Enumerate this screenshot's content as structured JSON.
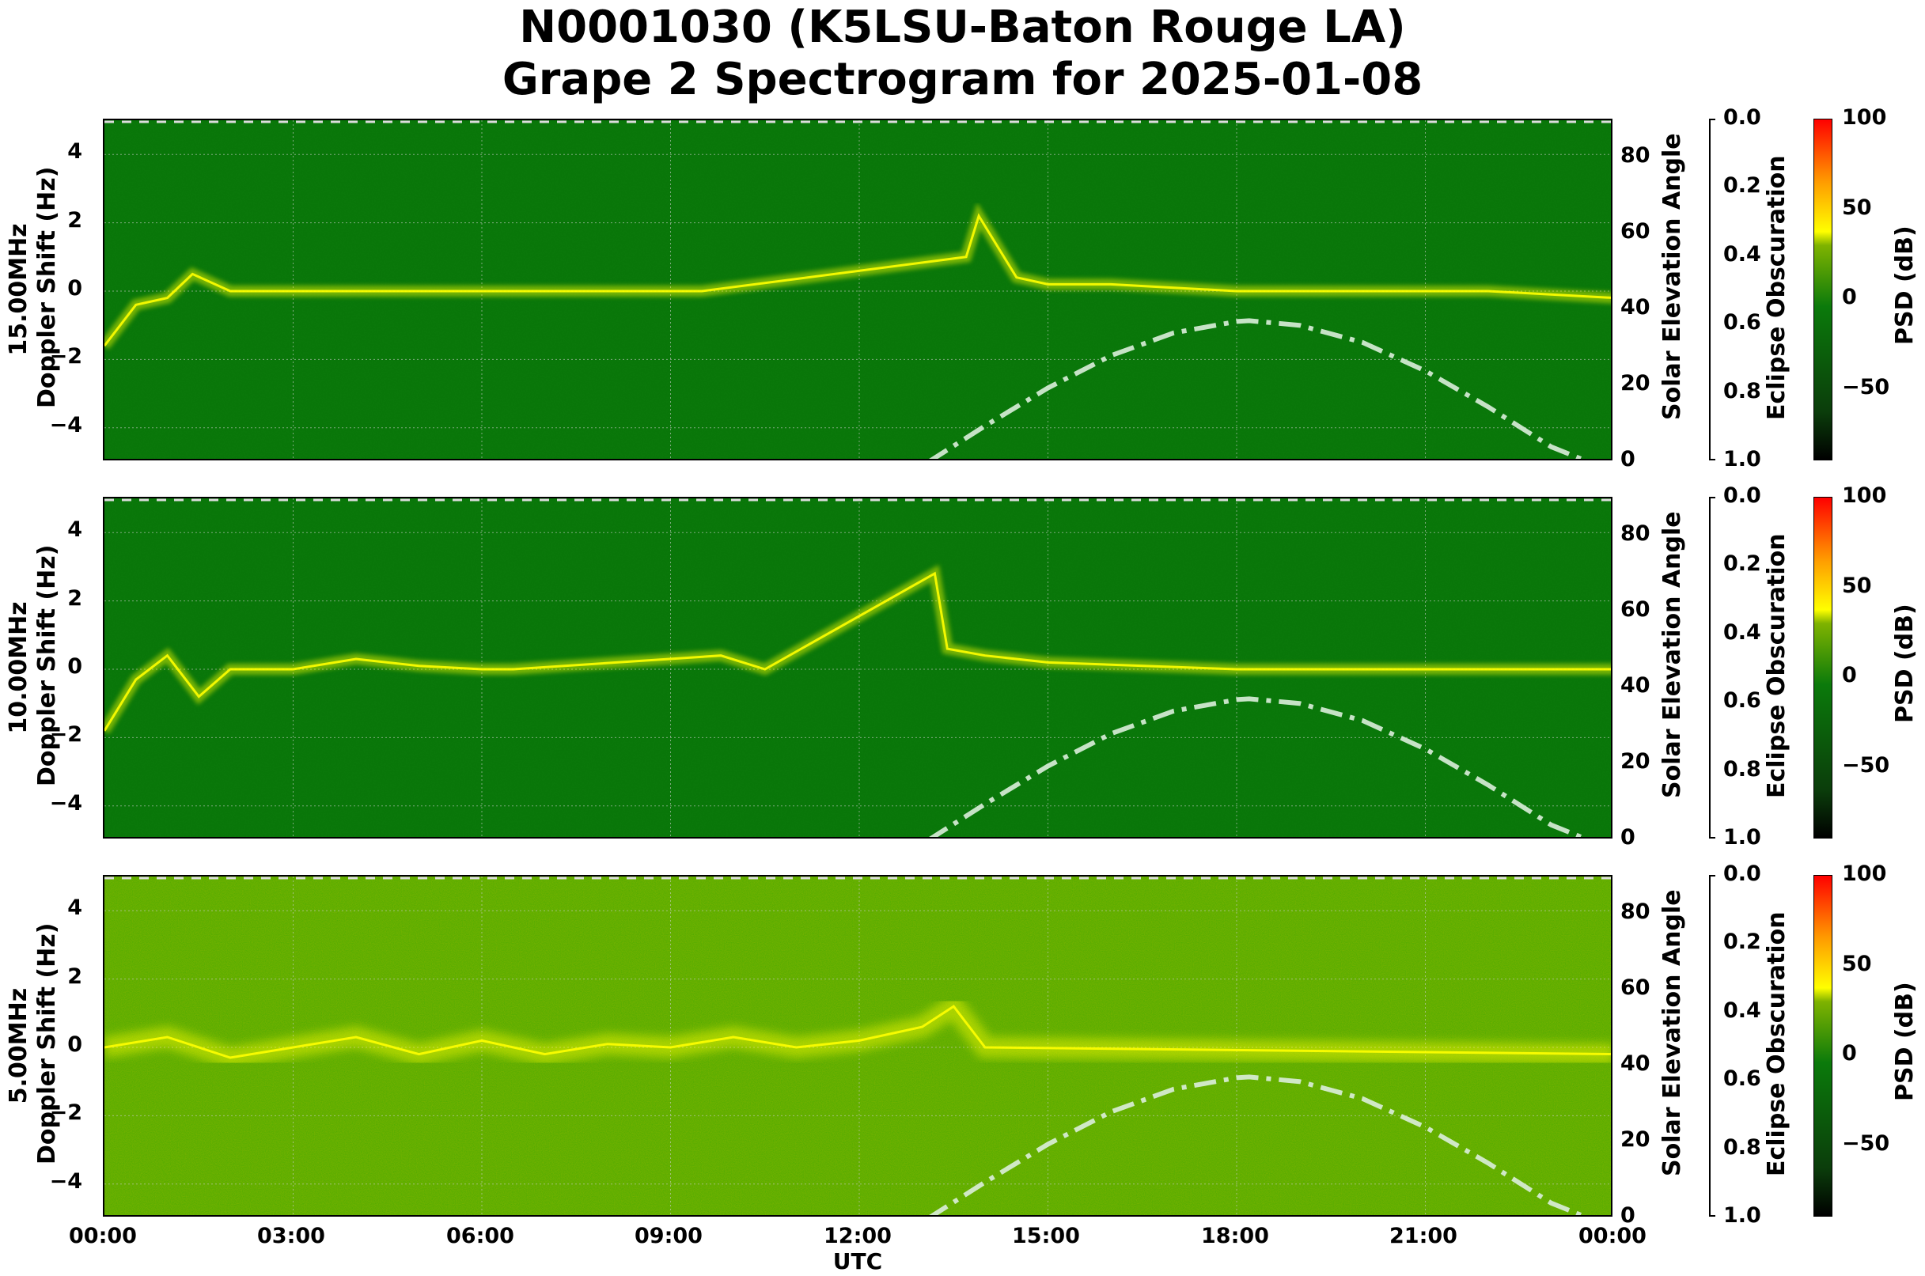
{
  "title": {
    "line1": "N0001030 (K5LSU-Baton Rouge LA)",
    "line2": "Grape 2 Spectrogram for 2025-01-08"
  },
  "colors": {
    "background_low": "#0b7a0b",
    "background_5mhz": "#7fb300",
    "signal": "#ffff00",
    "solar_curve": "#dceedc"
  },
  "x_axis": {
    "label": "UTC",
    "ticks": [
      "00:00",
      "03:00",
      "06:00",
      "09:00",
      "12:00",
      "15:00",
      "18:00",
      "21:00",
      "00:00"
    ]
  },
  "panels": [
    {
      "freq_label": "15.00MHz",
      "ylabel": "Doppler Shift (Hz)",
      "yticks": [
        "4",
        "2",
        "0",
        "−2",
        "−4"
      ],
      "right_label": "Solar Elevation Angle",
      "right_ticks": [
        "80",
        "60",
        "40",
        "20",
        "0"
      ],
      "eclipse_label": "Eclipse Obscuration",
      "eclipse_ticks": [
        "0.0",
        "0.2",
        "0.4",
        "0.6",
        "0.8",
        "1.0"
      ],
      "cbar_label": "PSD (dB)",
      "cbar_ticks": [
        "100",
        "50",
        "0",
        "−50"
      ]
    },
    {
      "freq_label": "10.00MHz",
      "ylabel": "Doppler Shift (Hz)",
      "yticks": [
        "4",
        "2",
        "0",
        "−2",
        "−4"
      ],
      "right_label": "Solar Elevation Angle",
      "right_ticks": [
        "80",
        "60",
        "40",
        "20",
        "0"
      ],
      "eclipse_label": "Eclipse Obscuration",
      "eclipse_ticks": [
        "0.0",
        "0.2",
        "0.4",
        "0.6",
        "0.8",
        "1.0"
      ],
      "cbar_label": "PSD (dB)",
      "cbar_ticks": [
        "100",
        "50",
        "0",
        "−50"
      ]
    },
    {
      "freq_label": "5.00MHz",
      "ylabel": "Doppler Shift (Hz)",
      "yticks": [
        "4",
        "2",
        "0",
        "−2",
        "−4"
      ],
      "right_label": "Solar Elevation Angle",
      "right_ticks": [
        "80",
        "60",
        "40",
        "20",
        "0"
      ],
      "eclipse_label": "Eclipse Obscuration",
      "eclipse_ticks": [
        "0.0",
        "0.2",
        "0.4",
        "0.6",
        "0.8",
        "1.0"
      ],
      "cbar_label": "PSD (dB)",
      "cbar_ticks": [
        "100",
        "50",
        "0",
        "−50"
      ]
    }
  ],
  "chart_data": {
    "type": "heatmap",
    "title": "N0001030 (K5LSU-Baton Rouge LA) Grape 2 Spectrogram for 2025-01-08",
    "xlabel": "UTC",
    "x_ticks": [
      "00:00",
      "03:00",
      "06:00",
      "09:00",
      "12:00",
      "15:00",
      "18:00",
      "21:00",
      "00:00"
    ],
    "xlim_hours": [
      0,
      24
    ],
    "ylabel": "Doppler Shift (Hz)",
    "ylim": [
      -5,
      5
    ],
    "y_ticks": [
      -4,
      -2,
      0,
      2,
      4
    ],
    "grid": true,
    "secondary_y": {
      "label": "Solar Elevation Angle",
      "ylim": [
        0,
        90
      ],
      "ticks": [
        0,
        20,
        40,
        60,
        80
      ]
    },
    "tertiary_y": {
      "label": "Eclipse Obscuration",
      "ylim": [
        1.0,
        0.0
      ],
      "ticks": [
        0.0,
        0.2,
        0.4,
        0.6,
        0.8,
        1.0
      ]
    },
    "colorbar": {
      "label": "PSD (dB)",
      "range": [
        -90,
        100
      ],
      "ticks": [
        -50,
        0,
        50,
        100
      ],
      "colormap": "black-green-yellow-red"
    },
    "panels": [
      "15.00MHz",
      "10.00MHz",
      "5.00MHz"
    ],
    "solar_elevation_series": {
      "name": "Solar Elevation Angle",
      "style": "dash-dot, light green-white",
      "x_hours": [
        13.1,
        14,
        15,
        16,
        17,
        18,
        18.2,
        19,
        20,
        21,
        22,
        23,
        23.6
      ],
      "y_deg": [
        0,
        9.5,
        19.5,
        28,
        34,
        37,
        37.2,
        36,
        31.5,
        24,
        14.5,
        4,
        0
      ]
    },
    "doppler_traces": [
      {
        "panel": "15.00MHz",
        "x_hours": [
          0,
          0.5,
          1,
          1.4,
          2,
          4,
          6,
          8,
          9.5,
          13.7,
          13.9,
          14.5,
          15,
          16,
          17,
          18,
          19,
          20,
          21,
          22,
          23,
          24
        ],
        "y_hz": [
          -1.6,
          -0.4,
          -0.2,
          0.5,
          0,
          0,
          0,
          0,
          0,
          1.0,
          2.2,
          0.4,
          0.2,
          0.2,
          0.1,
          0.0,
          0.0,
          0.0,
          0.0,
          0.0,
          -0.1,
          -0.2
        ]
      },
      {
        "panel": "10.00MHz",
        "x_hours": [
          0,
          0.5,
          1,
          1.5,
          2,
          3,
          4,
          5,
          6,
          6.5,
          9.8,
          10.5,
          13.2,
          13.4,
          14,
          15,
          18,
          21,
          24
        ],
        "y_hz": [
          -1.8,
          -0.3,
          0.4,
          -0.8,
          0.0,
          0,
          0.3,
          0.1,
          0.0,
          0.0,
          0.4,
          0.0,
          2.8,
          0.6,
          0.4,
          0.2,
          0.0,
          0.0,
          0.0
        ]
      },
      {
        "panel": "5.00MHz",
        "x_hours": [
          0,
          1,
          2,
          3,
          4,
          5,
          6,
          7,
          8,
          9,
          10,
          11,
          12,
          13,
          13.5,
          14,
          24
        ],
        "y_hz": [
          0.0,
          0.3,
          -0.3,
          0.0,
          0.3,
          -0.2,
          0.2,
          -0.2,
          0.1,
          0.0,
          0.3,
          0.0,
          0.2,
          0.6,
          1.2,
          0.0,
          -0.2
        ]
      }
    ]
  }
}
